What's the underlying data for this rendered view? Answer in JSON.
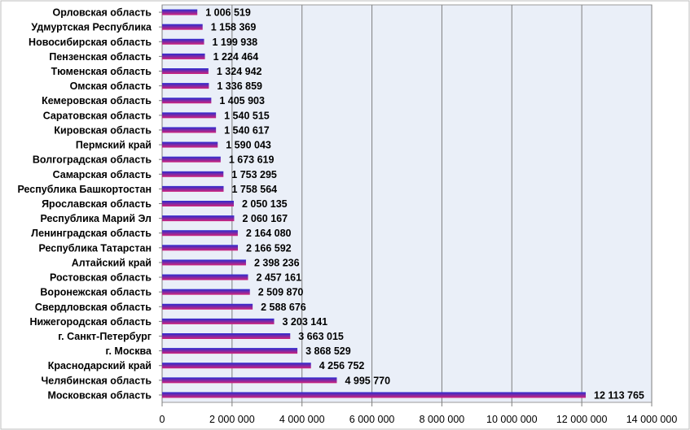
{
  "chart_data": {
    "type": "bar",
    "orientation": "horizontal",
    "title": "",
    "xlabel": "",
    "ylabel": "",
    "xlim": [
      0,
      14000000
    ],
    "xticks": [
      0,
      2000000,
      4000000,
      6000000,
      8000000,
      10000000,
      12000000,
      14000000
    ],
    "xtick_labels": [
      "0",
      "2 000 000",
      "4 000 000",
      "6 000 000",
      "8 000 000",
      "10 000 000",
      "12 000 000",
      "14 000 000"
    ],
    "grid": "vertical",
    "legend": "none",
    "colors": {
      "plot_background": "#eaeff8",
      "bar_top": "#2b2bd1",
      "bar_bottom": "#d1227a",
      "gridline": "#7f7f7f",
      "frame": "#bfbfbf"
    },
    "categories": [
      "Орловская область",
      "Удмуртская Республика",
      "Новосибирская область",
      "Пензенская область",
      "Тюменская область",
      "Омская область",
      "Кемеровская область",
      "Саратовская область",
      "Кировская область",
      "Пермский край",
      "Волгоградская область",
      "Самарская область",
      "Республика Башкортостан",
      "Ярославская область",
      "Республика Марий Эл",
      "Ленинградская область",
      "Республика Татарстан",
      "Алтайский край",
      "Ростовская область",
      "Воронежская область",
      "Свердловская область",
      "Нижегородская область",
      "г. Санкт-Петербург",
      "г. Москва",
      "Краснодарский край",
      "Челябинская область",
      "Московская область"
    ],
    "values": [
      1006519,
      1158369,
      1199938,
      1224464,
      1324942,
      1336859,
      1405903,
      1540515,
      1540617,
      1590043,
      1673619,
      1753295,
      1758564,
      2050135,
      2060167,
      2164080,
      2166592,
      2398236,
      2457161,
      2509870,
      2588676,
      3203141,
      3663015,
      3868529,
      4256752,
      4995770,
      12113765
    ],
    "value_labels": [
      "1 006 519",
      "1 158 369",
      "1 199 938",
      "1 224 464",
      "1 324 942",
      "1 336 859",
      "1 405 903",
      "1 540 515",
      "1 540 617",
      "1 590 043",
      "1 673 619",
      "1 753 295",
      "1 758 564",
      "2 050 135",
      "2 060 167",
      "2 164 080",
      "2 166 592",
      "2 398 236",
      "2 457 161",
      "2 509 870",
      "2 588 676",
      "3 203 141",
      "3 663 015",
      "3 868 529",
      "4 256 752",
      "4 995 770",
      "12 113 765"
    ]
  }
}
